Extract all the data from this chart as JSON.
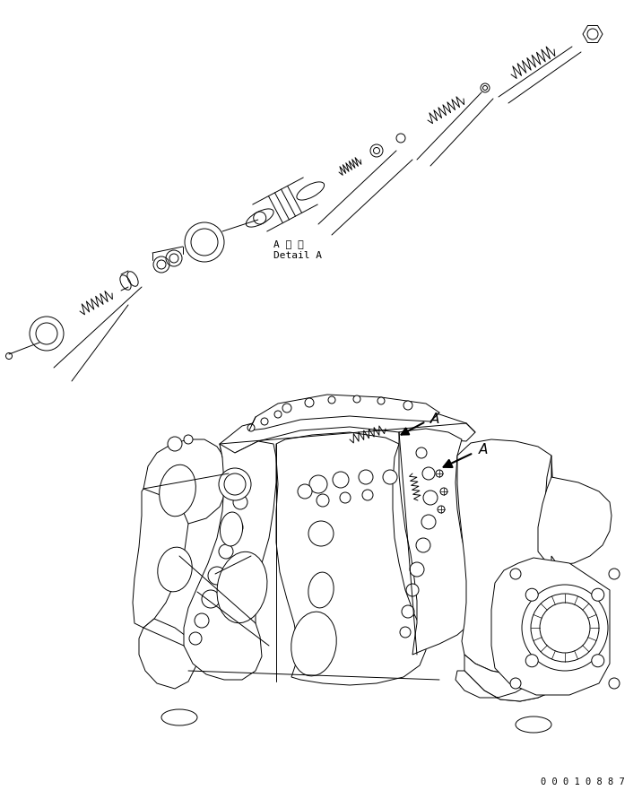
{
  "background_color": "#ffffff",
  "line_color": "#000000",
  "part_number": "0 0 0 1 0 8 8 7",
  "detail_label_jp": "A 詳 細",
  "detail_label_en": "Detail A",
  "arrow_label": "A",
  "figsize": [
    7.16,
    8.91
  ],
  "dpi": 100
}
